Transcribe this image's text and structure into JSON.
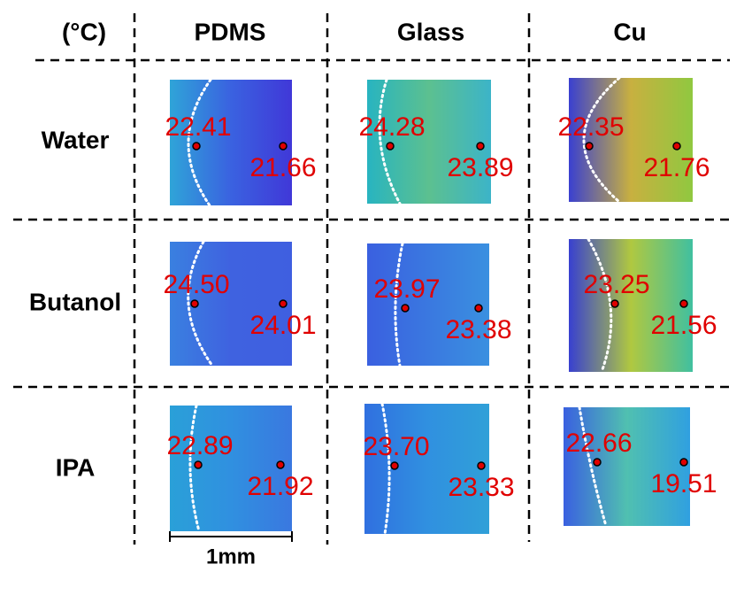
{
  "header": {
    "unit": "(°C)",
    "columns": [
      "PDMS",
      "Glass",
      "Cu"
    ]
  },
  "rows": [
    {
      "label": "Water",
      "cells": [
        {
          "left": "22.41",
          "right": "21.66"
        },
        {
          "left": "24.28",
          "right": "23.89"
        },
        {
          "left": "22.35",
          "right": "21.76"
        }
      ]
    },
    {
      "label": "Butanol",
      "cells": [
        {
          "left": "24.50",
          "right": "24.01"
        },
        {
          "left": "23.97",
          "right": "23.38"
        },
        {
          "left": "23.25",
          "right": "21.56"
        }
      ]
    },
    {
      "label": "IPA",
      "cells": [
        {
          "left": "22.89",
          "right": "21.92"
        },
        {
          "left": "23.70",
          "right": "23.33"
        },
        {
          "left": "22.66",
          "right": "19.51"
        }
      ]
    }
  ],
  "scale_bar": "1mm"
}
